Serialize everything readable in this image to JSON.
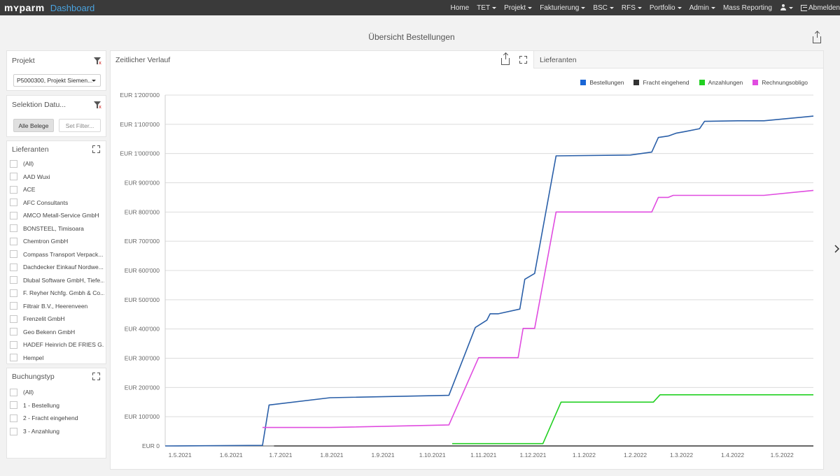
{
  "app": {
    "logo_text": "mʏparm",
    "name": "Dashboard"
  },
  "nav": {
    "items": [
      {
        "label": "Home",
        "dropdown": false
      },
      {
        "label": "TET",
        "dropdown": true
      },
      {
        "label": "Projekt",
        "dropdown": true
      },
      {
        "label": "Fakturierung",
        "dropdown": true
      },
      {
        "label": "BSC",
        "dropdown": true
      },
      {
        "label": "RFS",
        "dropdown": true
      },
      {
        "label": "Portfolio",
        "dropdown": true
      },
      {
        "label": "Admin",
        "dropdown": true
      },
      {
        "label": "Mass Reporting",
        "dropdown": false
      }
    ],
    "logout_label": "Abmelden"
  },
  "page": {
    "title": "Übersicht Bestellungen"
  },
  "filters": {
    "projekt": {
      "title": "Projekt",
      "selected": "P5000300, Projekt Siemen..."
    },
    "datum": {
      "title": "Selektion Datu...",
      "all_button": "Alle Belege",
      "set_button": "Set Filter..."
    },
    "lieferanten": {
      "title": "Lieferanten",
      "items": [
        "(All)",
        "AAD Wuxi",
        "ACE",
        "AFC Consultants",
        "AMCO Metall-Service GmbH",
        "BONSTEEL, Timisoara",
        "Chemtron GmbH",
        "Compass Transport Verpack...",
        "Dachdecker Einkauf Nordwe...",
        "Dlubal Software GmbH, Tiefe...",
        "F. Reyher Nchfg. Gmbh & Co...",
        "Filtrair B.V., Heerenveen",
        "Frenzelit GmbH",
        "Geo Bekenn GmbH",
        "HADEF Heinrich DE FRIES G...",
        "Hempel"
      ]
    },
    "buchungstyp": {
      "title": "Buchungstyp",
      "items": [
        "(All)",
        "1 - Bestellung",
        "2 - Fracht eingehend",
        "3 - Anzahlung"
      ]
    }
  },
  "chart_panel": {
    "tab_active": "Zeitlicher Verlauf",
    "tab_inactive": "Lieferanten"
  },
  "colors": {
    "Bestellungen": "#2a5fa8",
    "Fracht eingehend": "#333333",
    "Anzahlungen": "#22d022",
    "Rechnungsobligo": "#e04ce0",
    "legend_Bestellungen": "#1a66d6"
  },
  "chart_data": {
    "type": "line",
    "ylim": [
      0,
      1200000
    ],
    "y_ticks": [
      0,
      100000,
      200000,
      300000,
      400000,
      500000,
      600000,
      700000,
      800000,
      900000,
      1000000,
      1100000,
      1200000
    ],
    "y_tick_labels": [
      "EUR 0",
      "EUR 100'000",
      "EUR 200'000",
      "EUR 300'000",
      "EUR 400'000",
      "EUR 500'000",
      "EUR 600'000",
      "EUR 700'000",
      "EUR 800'000",
      "EUR 900'000",
      "EUR 1'000'000",
      "EUR 1'100'000",
      "EUR 1'200'000"
    ],
    "x_ticks": [
      "2021-05-01",
      "2021-06-01",
      "2021-07-01",
      "2021-08-01",
      "2021-09-01",
      "2021-10-01",
      "2021-11-01",
      "2021-12-01",
      "2022-01-01",
      "2022-02-01",
      "2022-03-01",
      "2022-04-01",
      "2022-05-01"
    ],
    "x_tick_labels": [
      "1.5.2021",
      "1.6.2021",
      "1.7.2021",
      "1.8.2021",
      "1.9.2021",
      "1.10.2021",
      "1.11.2021",
      "1.12.2021",
      "1.1.2022",
      "1.2.2022",
      "1.3.2022",
      "1.4.2022",
      "1.5.2022"
    ],
    "x_range": [
      "2021-04-22",
      "2022-05-20"
    ],
    "grid": true,
    "legend_position": "top-right",
    "series": [
      {
        "name": "Bestellungen",
        "points": [
          [
            "2021-04-22",
            0
          ],
          [
            "2021-06-20",
            2000
          ],
          [
            "2021-06-24",
            140000
          ],
          [
            "2021-07-31",
            165000
          ],
          [
            "2021-10-11",
            173000
          ],
          [
            "2021-10-27",
            405000
          ],
          [
            "2021-11-03",
            430000
          ],
          [
            "2021-11-05",
            452000
          ],
          [
            "2021-11-10",
            452000
          ],
          [
            "2021-11-23",
            468000
          ],
          [
            "2021-11-26",
            570000
          ],
          [
            "2021-12-02",
            590000
          ],
          [
            "2021-12-15",
            992000
          ],
          [
            "2022-01-29",
            995000
          ],
          [
            "2022-02-11",
            1005000
          ],
          [
            "2022-02-15",
            1055000
          ],
          [
            "2022-02-21",
            1060000
          ],
          [
            "2022-02-26",
            1070000
          ],
          [
            "2022-03-03",
            1075000
          ],
          [
            "2022-03-12",
            1085000
          ],
          [
            "2022-03-15",
            1110000
          ],
          [
            "2022-04-04",
            1112000
          ],
          [
            "2022-04-20",
            1112000
          ],
          [
            "2022-05-20",
            1128000
          ]
        ]
      },
      {
        "name": "Fracht eingehend",
        "points": [
          [
            "2021-06-27",
            0
          ],
          [
            "2022-05-20",
            0
          ]
        ]
      },
      {
        "name": "Anzahlungen",
        "points": [
          [
            "2021-10-13",
            8000
          ],
          [
            "2021-12-07",
            8000
          ],
          [
            "2021-12-18",
            150000
          ],
          [
            "2022-02-12",
            150000
          ],
          [
            "2022-02-16",
            175000
          ],
          [
            "2022-05-20",
            175000
          ]
        ]
      },
      {
        "name": "Rechnungsobligo",
        "points": [
          [
            "2021-06-20",
            63000
          ],
          [
            "2021-07-31",
            63000
          ],
          [
            "2021-10-11",
            72000
          ],
          [
            "2021-10-29",
            302000
          ],
          [
            "2021-11-22",
            302000
          ],
          [
            "2021-11-25",
            402000
          ],
          [
            "2021-12-02",
            402000
          ],
          [
            "2021-12-15",
            800000
          ],
          [
            "2022-02-11",
            800000
          ],
          [
            "2022-02-15",
            850000
          ],
          [
            "2022-02-21",
            850000
          ],
          [
            "2022-02-24",
            857000
          ],
          [
            "2022-04-20",
            857000
          ],
          [
            "2022-05-20",
            874000
          ]
        ]
      }
    ]
  }
}
